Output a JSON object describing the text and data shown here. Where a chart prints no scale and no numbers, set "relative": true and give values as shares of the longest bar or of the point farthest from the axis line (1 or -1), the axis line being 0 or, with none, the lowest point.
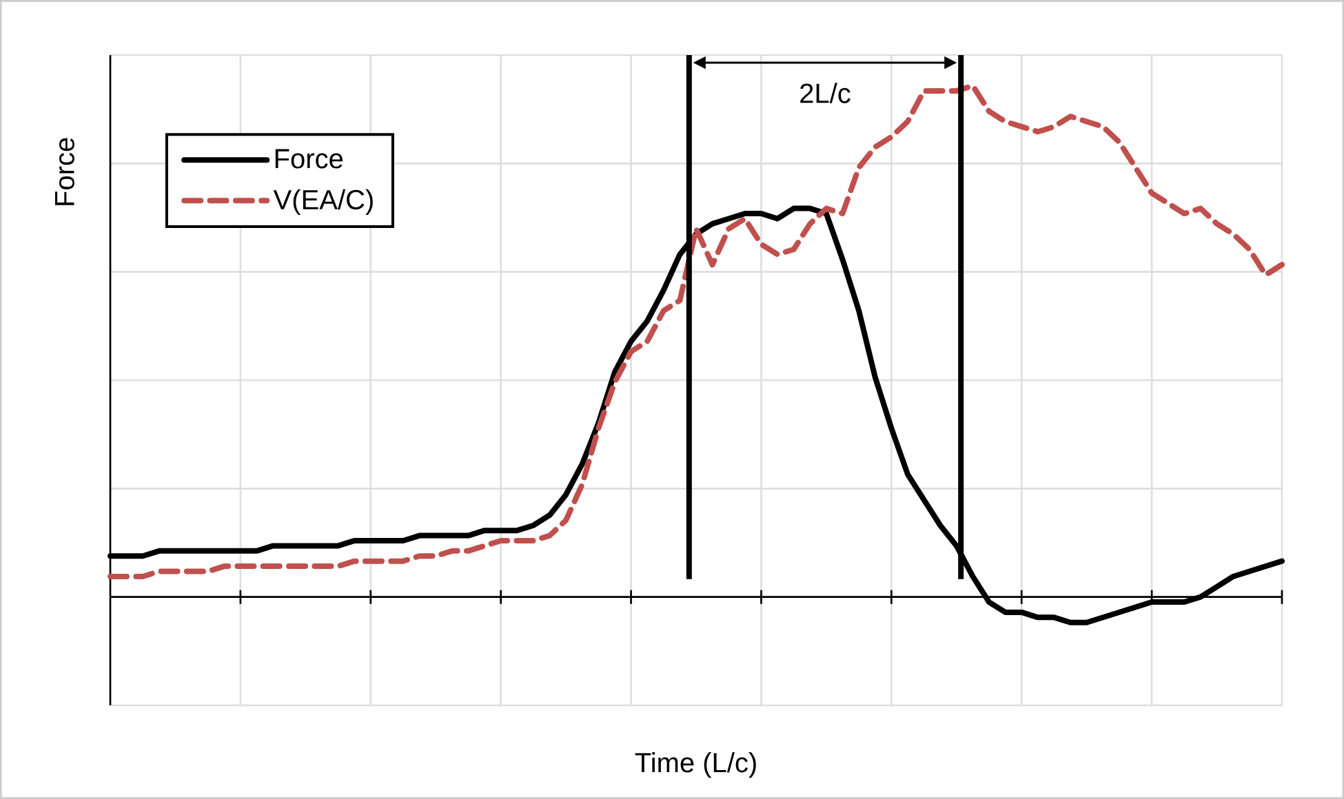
{
  "chart_data": {
    "type": "line",
    "relative": true,
    "xlabel": "Time (L/c)",
    "ylabel": "Force",
    "categories": [
      null,
      null,
      null,
      null,
      null,
      null,
      null,
      null,
      null,
      null,
      null,
      null,
      null,
      null,
      null,
      null,
      null,
      null,
      null,
      null,
      null,
      null,
      null,
      null,
      null,
      null,
      null,
      null,
      null,
      null,
      null,
      null,
      null,
      null,
      null,
      null,
      null,
      null,
      null,
      null,
      null,
      null,
      null,
      null,
      null,
      null,
      null,
      null,
      null,
      null,
      null,
      null,
      null,
      null,
      null,
      null,
      null,
      null,
      null,
      null,
      null,
      null,
      null,
      null,
      null,
      null,
      null,
      null,
      null,
      null,
      null,
      null,
      null
    ],
    "grid": true,
    "legend": "top left",
    "series": [
      {
        "name": "Force",
        "color": "#000000",
        "line_style": "solid",
        "values": [
          0.08,
          0.08,
          0.08,
          0.09,
          0.09,
          0.09,
          0.09,
          0.09,
          0.09,
          0.09,
          0.1,
          0.1,
          0.1,
          0.1,
          0.1,
          0.11,
          0.11,
          0.11,
          0.11,
          0.12,
          0.12,
          0.12,
          0.12,
          0.13,
          0.13,
          0.13,
          0.14,
          0.16,
          0.2,
          0.26,
          0.34,
          0.44,
          0.5,
          0.54,
          0.6,
          0.67,
          0.71,
          0.73,
          0.74,
          0.75,
          0.75,
          0.74,
          0.76,
          0.76,
          0.75,
          0.66,
          0.56,
          0.43,
          0.33,
          0.24,
          0.19,
          0.14,
          0.1,
          0.04,
          -0.01,
          -0.03,
          -0.03,
          -0.04,
          -0.04,
          -0.05,
          -0.05,
          -0.04,
          -0.03,
          -0.02,
          -0.01,
          -0.01,
          -0.01,
          0.0,
          0.02,
          0.04,
          0.05,
          0.06,
          0.07
        ]
      },
      {
        "name": "V(EA/C)",
        "color": "#c0504d",
        "line_style": "dashed",
        "values": [
          0.04,
          0.04,
          0.04,
          0.05,
          0.05,
          0.05,
          0.05,
          0.06,
          0.06,
          0.06,
          0.06,
          0.06,
          0.06,
          0.06,
          0.06,
          0.07,
          0.07,
          0.07,
          0.07,
          0.08,
          0.08,
          0.09,
          0.09,
          0.1,
          0.11,
          0.11,
          0.11,
          0.12,
          0.15,
          0.22,
          0.33,
          0.42,
          0.48,
          0.5,
          0.56,
          0.58,
          0.72,
          0.65,
          0.72,
          0.74,
          0.69,
          0.67,
          0.68,
          0.73,
          0.76,
          0.75,
          0.84,
          0.88,
          0.9,
          0.93,
          0.99,
          0.99,
          0.99,
          1.0,
          0.95,
          0.93,
          0.92,
          0.91,
          0.92,
          0.94,
          0.93,
          0.92,
          0.89,
          0.84,
          0.79,
          0.77,
          0.75,
          0.76,
          0.73,
          0.71,
          0.68,
          0.63,
          0.65
        ]
      }
    ],
    "annotations": [
      "2L/c"
    ]
  }
}
